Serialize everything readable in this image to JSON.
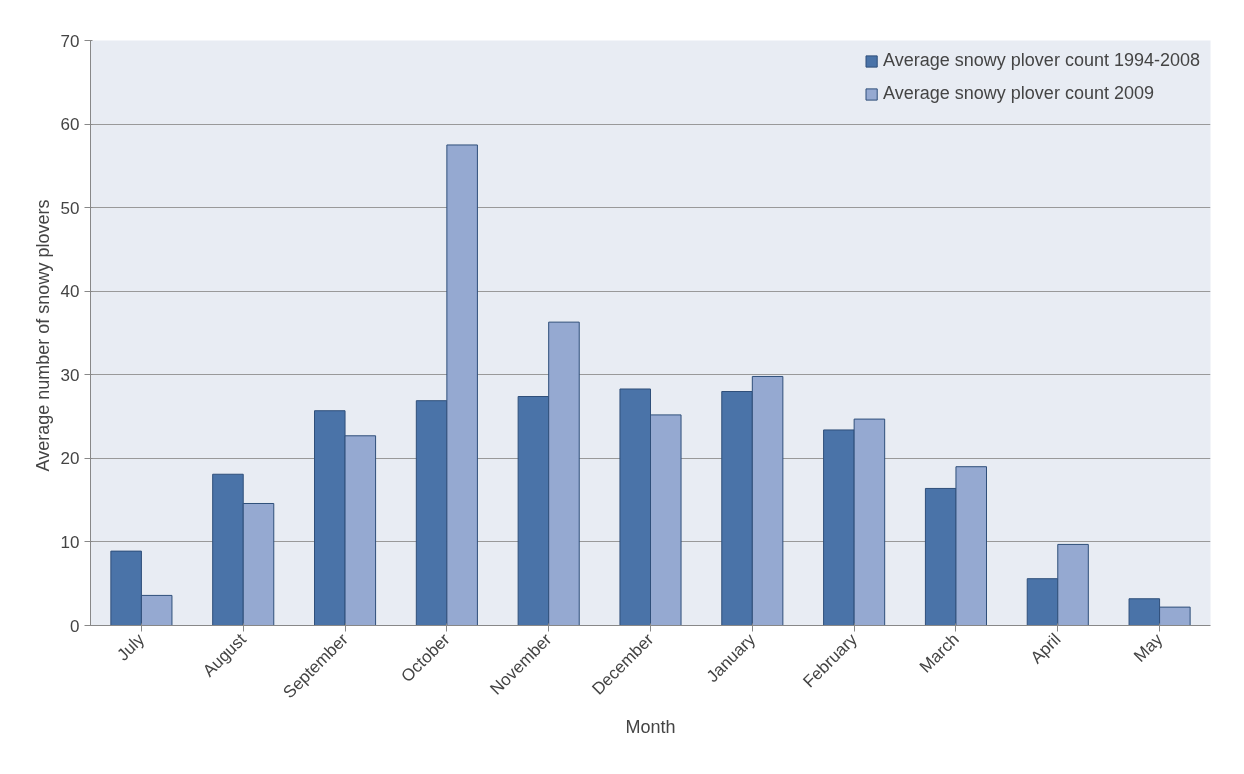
{
  "chart_data": {
    "type": "bar",
    "xlabel": "Month",
    "ylabel": "Average number  of snowy plovers",
    "categories": [
      "July",
      "August",
      "September",
      "October",
      "November",
      "December",
      "January",
      "February",
      "March",
      "April",
      "May"
    ],
    "series": [
      {
        "name": "Average snowy plover count 1994-2008",
        "color": "#4a73a8",
        "values": [
          8.9,
          18.1,
          25.7,
          26.9,
          27.4,
          28.3,
          28.0,
          23.4,
          16.4,
          5.6,
          3.2
        ]
      },
      {
        "name": "Average snowy plover count 2009",
        "color": "#95a9d1",
        "values": [
          3.6,
          14.6,
          22.7,
          57.5,
          36.3,
          25.2,
          29.8,
          24.7,
          19.0,
          9.7,
          2.2
        ]
      }
    ],
    "ylim": [
      0,
      70
    ],
    "yticks": [
      0,
      10,
      20,
      30,
      40,
      50,
      60,
      70
    ],
    "grid": "y",
    "legend": "top right"
  }
}
